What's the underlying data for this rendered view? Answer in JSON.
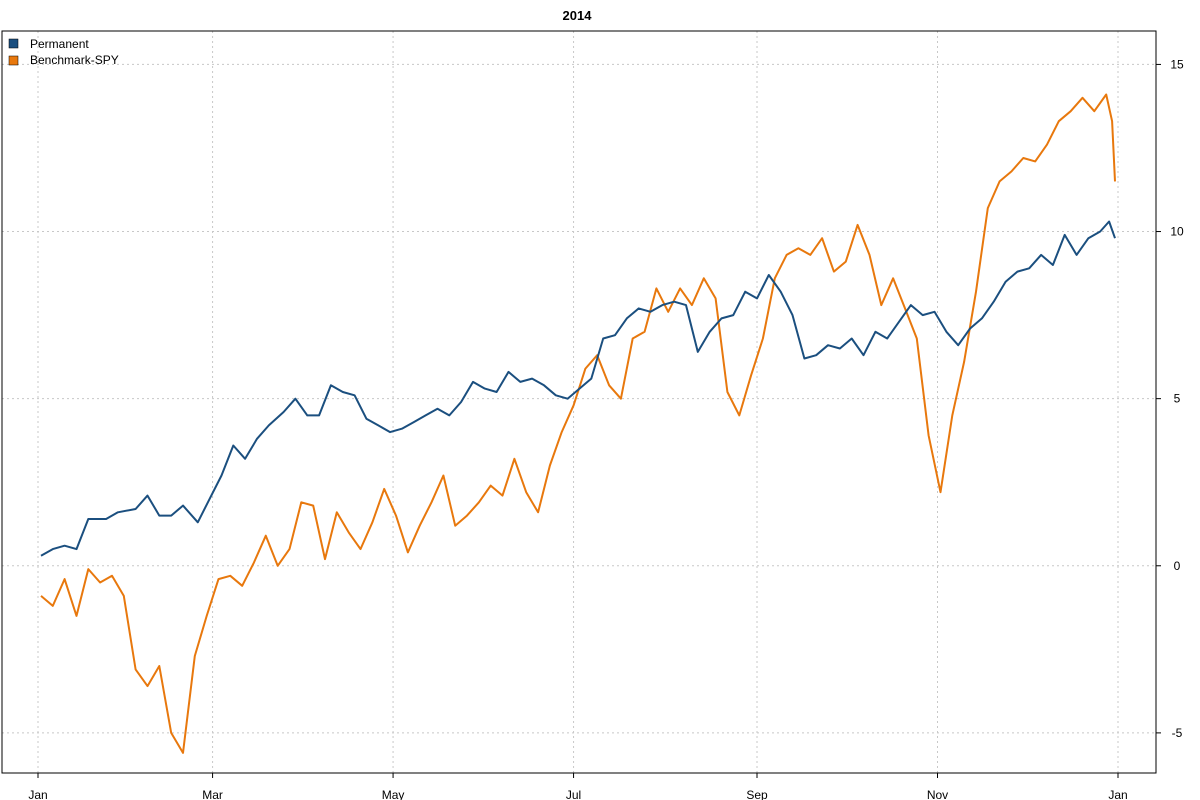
{
  "chart_data": {
    "type": "line",
    "title": "2014",
    "xlabel": "",
    "ylabel": "",
    "x_axis": {
      "type": "date",
      "range": [
        "2014-01-01",
        "2015-01-01"
      ],
      "ticks": [
        {
          "date": "2014-01-01",
          "label": "Jan"
        },
        {
          "date": "2014-03-01",
          "label": "Mar"
        },
        {
          "date": "2014-05-01",
          "label": "May"
        },
        {
          "date": "2014-07-01",
          "label": "Jul"
        },
        {
          "date": "2014-09-01",
          "label": "Sep"
        },
        {
          "date": "2014-11-01",
          "label": "Nov"
        },
        {
          "date": "2015-01-01",
          "label": "Jan"
        }
      ]
    },
    "y_axis": {
      "position": "right",
      "ylim": [
        -6.2,
        16
      ],
      "ticks": [
        -5,
        0,
        5,
        10,
        15
      ]
    },
    "grid": true,
    "legend": {
      "position": "top-left"
    },
    "series": [
      {
        "name": "Permanent",
        "color": "#1b4f7f",
        "points": [
          [
            "2014-01-02",
            0.3
          ],
          [
            "2014-01-06",
            0.5
          ],
          [
            "2014-01-10",
            0.6
          ],
          [
            "2014-01-14",
            0.5
          ],
          [
            "2014-01-18",
            1.4
          ],
          [
            "2014-01-24",
            1.4
          ],
          [
            "2014-01-28",
            1.6
          ],
          [
            "2014-02-03",
            1.7
          ],
          [
            "2014-02-07",
            2.1
          ],
          [
            "2014-02-11",
            1.5
          ],
          [
            "2014-02-15",
            1.5
          ],
          [
            "2014-02-19",
            1.8
          ],
          [
            "2014-02-24",
            1.3
          ],
          [
            "2014-02-28",
            2.0
          ],
          [
            "2014-03-04",
            2.7
          ],
          [
            "2014-03-08",
            3.6
          ],
          [
            "2014-03-12",
            3.2
          ],
          [
            "2014-03-16",
            3.8
          ],
          [
            "2014-03-20",
            4.2
          ],
          [
            "2014-03-25",
            4.6
          ],
          [
            "2014-03-29",
            5.0
          ],
          [
            "2014-04-02",
            4.5
          ],
          [
            "2014-04-06",
            4.5
          ],
          [
            "2014-04-10",
            5.4
          ],
          [
            "2014-04-14",
            5.2
          ],
          [
            "2014-04-18",
            5.1
          ],
          [
            "2014-04-22",
            4.4
          ],
          [
            "2014-04-26",
            4.2
          ],
          [
            "2014-04-30",
            4.0
          ],
          [
            "2014-05-04",
            4.1
          ],
          [
            "2014-05-08",
            4.3
          ],
          [
            "2014-05-12",
            4.5
          ],
          [
            "2014-05-16",
            4.7
          ],
          [
            "2014-05-20",
            4.5
          ],
          [
            "2014-05-24",
            4.9
          ],
          [
            "2014-05-28",
            5.5
          ],
          [
            "2014-06-01",
            5.3
          ],
          [
            "2014-06-05",
            5.2
          ],
          [
            "2014-06-09",
            5.8
          ],
          [
            "2014-06-13",
            5.5
          ],
          [
            "2014-06-17",
            5.6
          ],
          [
            "2014-06-21",
            5.4
          ],
          [
            "2014-06-25",
            5.1
          ],
          [
            "2014-06-29",
            5.0
          ],
          [
            "2014-07-03",
            5.3
          ],
          [
            "2014-07-07",
            5.6
          ],
          [
            "2014-07-11",
            6.8
          ],
          [
            "2014-07-15",
            6.9
          ],
          [
            "2014-07-19",
            7.4
          ],
          [
            "2014-07-23",
            7.7
          ],
          [
            "2014-07-27",
            7.6
          ],
          [
            "2014-07-31",
            7.8
          ],
          [
            "2014-08-04",
            7.9
          ],
          [
            "2014-08-08",
            7.8
          ],
          [
            "2014-08-12",
            6.4
          ],
          [
            "2014-08-16",
            7.0
          ],
          [
            "2014-08-20",
            7.4
          ],
          [
            "2014-08-24",
            7.5
          ],
          [
            "2014-08-28",
            8.2
          ],
          [
            "2014-09-01",
            8.0
          ],
          [
            "2014-09-05",
            8.7
          ],
          [
            "2014-09-09",
            8.2
          ],
          [
            "2014-09-13",
            7.5
          ],
          [
            "2014-09-17",
            6.2
          ],
          [
            "2014-09-21",
            6.3
          ],
          [
            "2014-09-25",
            6.6
          ],
          [
            "2014-09-29",
            6.5
          ],
          [
            "2014-10-03",
            6.8
          ],
          [
            "2014-10-07",
            6.3
          ],
          [
            "2014-10-11",
            7.0
          ],
          [
            "2014-10-15",
            6.8
          ],
          [
            "2014-10-19",
            7.3
          ],
          [
            "2014-10-23",
            7.8
          ],
          [
            "2014-10-27",
            7.5
          ],
          [
            "2014-10-31",
            7.6
          ],
          [
            "2014-11-04",
            7.0
          ],
          [
            "2014-11-08",
            6.6
          ],
          [
            "2014-11-12",
            7.1
          ],
          [
            "2014-11-16",
            7.4
          ],
          [
            "2014-11-20",
            7.9
          ],
          [
            "2014-11-24",
            8.5
          ],
          [
            "2014-11-28",
            8.8
          ],
          [
            "2014-12-02",
            8.9
          ],
          [
            "2014-12-06",
            9.3
          ],
          [
            "2014-12-10",
            9.0
          ],
          [
            "2014-12-14",
            9.9
          ],
          [
            "2014-12-18",
            9.3
          ],
          [
            "2014-12-22",
            9.8
          ],
          [
            "2014-12-26",
            10.0
          ],
          [
            "2014-12-29",
            10.3
          ],
          [
            "2014-12-31",
            9.8
          ]
        ]
      },
      {
        "name": "Benchmark-SPY",
        "color": "#e8780d",
        "points": [
          [
            "2014-01-02",
            -0.9
          ],
          [
            "2014-01-06",
            -1.2
          ],
          [
            "2014-01-10",
            -0.4
          ],
          [
            "2014-01-14",
            -1.5
          ],
          [
            "2014-01-18",
            -0.1
          ],
          [
            "2014-01-22",
            -0.5
          ],
          [
            "2014-01-26",
            -0.3
          ],
          [
            "2014-01-30",
            -0.9
          ],
          [
            "2014-02-03",
            -3.1
          ],
          [
            "2014-02-07",
            -3.6
          ],
          [
            "2014-02-11",
            -3.0
          ],
          [
            "2014-02-15",
            -5.0
          ],
          [
            "2014-02-19",
            -5.6
          ],
          [
            "2014-02-23",
            -2.7
          ],
          [
            "2014-02-27",
            -1.5
          ],
          [
            "2014-03-03",
            -0.4
          ],
          [
            "2014-03-07",
            -0.3
          ],
          [
            "2014-03-11",
            -0.6
          ],
          [
            "2014-03-15",
            0.1
          ],
          [
            "2014-03-19",
            0.9
          ],
          [
            "2014-03-23",
            0.0
          ],
          [
            "2014-03-27",
            0.5
          ],
          [
            "2014-03-31",
            1.9
          ],
          [
            "2014-04-04",
            1.8
          ],
          [
            "2014-04-08",
            0.2
          ],
          [
            "2014-04-12",
            1.6
          ],
          [
            "2014-04-16",
            1.0
          ],
          [
            "2014-04-20",
            0.5
          ],
          [
            "2014-04-24",
            1.3
          ],
          [
            "2014-04-28",
            2.3
          ],
          [
            "2014-05-02",
            1.5
          ],
          [
            "2014-05-06",
            0.4
          ],
          [
            "2014-05-10",
            1.2
          ],
          [
            "2014-05-14",
            1.9
          ],
          [
            "2014-05-18",
            2.7
          ],
          [
            "2014-05-22",
            1.2
          ],
          [
            "2014-05-26",
            1.5
          ],
          [
            "2014-05-30",
            1.9
          ],
          [
            "2014-06-03",
            2.4
          ],
          [
            "2014-06-07",
            2.1
          ],
          [
            "2014-06-11",
            3.2
          ],
          [
            "2014-06-15",
            2.2
          ],
          [
            "2014-06-19",
            1.6
          ],
          [
            "2014-06-23",
            3.0
          ],
          [
            "2014-06-27",
            4.0
          ],
          [
            "2014-07-01",
            4.8
          ],
          [
            "2014-07-05",
            5.9
          ],
          [
            "2014-07-09",
            6.3
          ],
          [
            "2014-07-13",
            5.4
          ],
          [
            "2014-07-17",
            5.0
          ],
          [
            "2014-07-21",
            6.8
          ],
          [
            "2014-07-25",
            7.0
          ],
          [
            "2014-07-29",
            8.3
          ],
          [
            "2014-08-02",
            7.6
          ],
          [
            "2014-08-06",
            8.3
          ],
          [
            "2014-08-10",
            7.8
          ],
          [
            "2014-08-14",
            8.6
          ],
          [
            "2014-08-18",
            8.0
          ],
          [
            "2014-08-22",
            5.2
          ],
          [
            "2014-08-26",
            4.5
          ],
          [
            "2014-08-30",
            5.7
          ],
          [
            "2014-09-03",
            6.8
          ],
          [
            "2014-09-07",
            8.6
          ],
          [
            "2014-09-11",
            9.3
          ],
          [
            "2014-09-15",
            9.5
          ],
          [
            "2014-09-19",
            9.3
          ],
          [
            "2014-09-23",
            9.8
          ],
          [
            "2014-09-27",
            8.8
          ],
          [
            "2014-10-01",
            9.1
          ],
          [
            "2014-10-05",
            10.2
          ],
          [
            "2014-10-09",
            9.3
          ],
          [
            "2014-10-13",
            7.8
          ],
          [
            "2014-10-17",
            8.6
          ],
          [
            "2014-10-21",
            7.7
          ],
          [
            "2014-10-25",
            6.8
          ],
          [
            "2014-10-29",
            3.9
          ],
          [
            "2014-11-02",
            2.2
          ],
          [
            "2014-11-06",
            4.5
          ],
          [
            "2014-11-10",
            6.1
          ],
          [
            "2014-11-14",
            8.2
          ],
          [
            "2014-11-18",
            10.7
          ],
          [
            "2014-11-22",
            11.5
          ],
          [
            "2014-11-26",
            11.8
          ],
          [
            "2014-11-30",
            12.2
          ],
          [
            "2014-12-04",
            12.1
          ],
          [
            "2014-12-08",
            12.6
          ],
          [
            "2014-12-12",
            13.3
          ],
          [
            "2014-12-16",
            13.6
          ],
          [
            "2014-12-20",
            14.0
          ],
          [
            "2014-12-24",
            13.6
          ],
          [
            "2014-12-28",
            14.1
          ],
          [
            "2014-12-30",
            13.3
          ],
          [
            "2014-12-31",
            11.5
          ]
        ]
      }
    ]
  }
}
